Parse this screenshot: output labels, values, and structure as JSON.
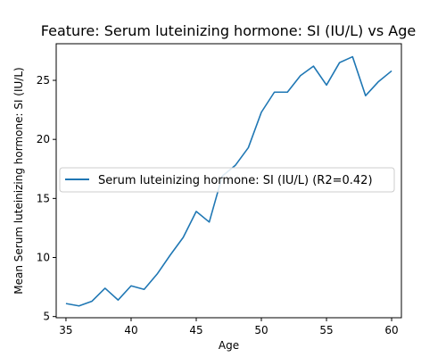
{
  "chart_data": {
    "type": "line",
    "title": "Feature: Serum luteinizing hormone: SI (IU/L) vs Age",
    "xlabel": "Age",
    "ylabel": "Mean Serum luteinizing hormone: SI (IU/L)",
    "xlim": [
      34.25,
      60.75
    ],
    "ylim": [
      4.9,
      28.1
    ],
    "xticks": [
      35,
      40,
      45,
      50,
      55,
      60
    ],
    "yticks": [
      5,
      10,
      15,
      20,
      25
    ],
    "grid": false,
    "legend_position": "center-left",
    "series": [
      {
        "name": "Serum luteinizing hormone: SI (IU/L) (R2=0.42)",
        "color": "#1f77b4",
        "x": [
          35,
          36,
          37,
          38,
          39,
          40,
          41,
          42,
          43,
          44,
          45,
          46,
          47,
          48,
          49,
          50,
          51,
          52,
          53,
          54,
          55,
          56,
          57,
          58,
          59,
          60
        ],
        "y": [
          6.1,
          5.9,
          6.3,
          7.4,
          6.4,
          7.6,
          7.3,
          8.6,
          10.2,
          11.7,
          13.9,
          13.0,
          16.9,
          17.8,
          19.3,
          22.3,
          24.0,
          24.0,
          25.4,
          26.2,
          24.6,
          26.5,
          27.0,
          23.7,
          24.9,
          25.8
        ]
      }
    ]
  }
}
